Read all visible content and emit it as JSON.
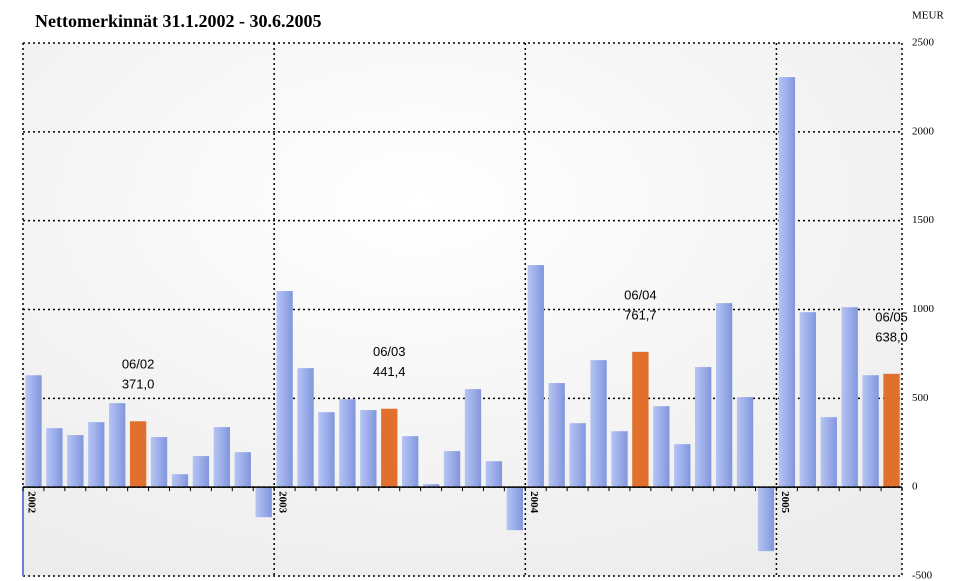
{
  "chart_data": {
    "type": "bar",
    "title": "Nettomerkinnät 31.1.2002 - 30.6.2005",
    "y_unit": "MEUR",
    "categories": [
      "2002",
      null,
      null,
      null,
      null,
      null,
      null,
      null,
      null,
      null,
      null,
      null,
      "2003",
      null,
      null,
      null,
      null,
      null,
      null,
      null,
      null,
      null,
      null,
      null,
      "2004",
      null,
      null,
      null,
      null,
      null,
      null,
      null,
      null,
      null,
      null,
      null,
      "2005",
      null,
      null,
      null,
      null,
      null
    ],
    "values": [
      630,
      332,
      293,
      366,
      473,
      371.0,
      282,
      73,
      175,
      338,
      197,
      -169,
      1104,
      670,
      422,
      495,
      434,
      441.4,
      287,
      17,
      203,
      552,
      146,
      -242,
      1250,
      586,
      360,
      715,
      315,
      761.7,
      456,
      242,
      676,
      1036,
      507,
      -360,
      2308,
      985,
      394,
      1013,
      630,
      638.0
    ],
    "annotations": [
      null,
      null,
      null,
      null,
      null,
      "06/02",
      null,
      null,
      null,
      null,
      null,
      null,
      null,
      null,
      null,
      null,
      null,
      "06/03",
      null,
      null,
      null,
      null,
      null,
      null,
      null,
      null,
      null,
      null,
      null,
      "06/04",
      null,
      null,
      null,
      null,
      null,
      null,
      null,
      null,
      null,
      null,
      null,
      "06/05"
    ],
    "value_labels": [
      null,
      null,
      null,
      null,
      null,
      "371,0",
      null,
      null,
      null,
      null,
      null,
      null,
      null,
      null,
      null,
      null,
      null,
      "441,4",
      null,
      null,
      null,
      null,
      null,
      null,
      null,
      null,
      null,
      null,
      null,
      "761,7",
      null,
      null,
      null,
      null,
      null,
      null,
      null,
      null,
      null,
      null,
      null,
      "638,0"
    ],
    "color": "#9caeea",
    "highlight_color": "#e0702c",
    "ylim": [
      -500,
      2500
    ],
    "yticks": [
      -500,
      0,
      500,
      1000,
      1500,
      2000,
      2500
    ],
    "grid": true
  }
}
